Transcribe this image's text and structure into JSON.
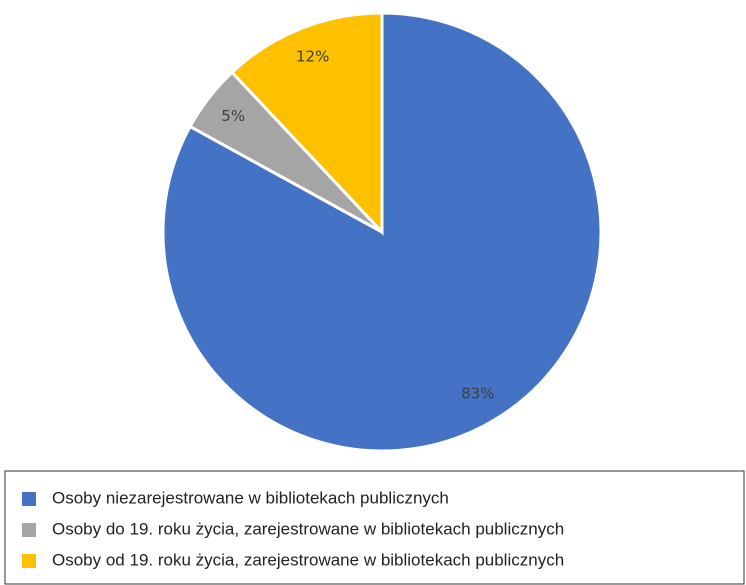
{
  "chart_data": {
    "type": "pie",
    "categories": [
      "Osoby niezarejestrowane w bibliotekach publicznych",
      "Osoby do 19. roku życia, zarejestrowane w bibliotekach publicznych",
      "Osoby od 19. roku życia, zarejestrowane w bibliotekach publicznych"
    ],
    "values": [
      83,
      5,
      12
    ],
    "value_labels": [
      "83%",
      "5%",
      "12%"
    ],
    "colors": [
      "#4472c4",
      "#a5a5a5",
      "#ffc000"
    ],
    "legend": "bottom"
  }
}
